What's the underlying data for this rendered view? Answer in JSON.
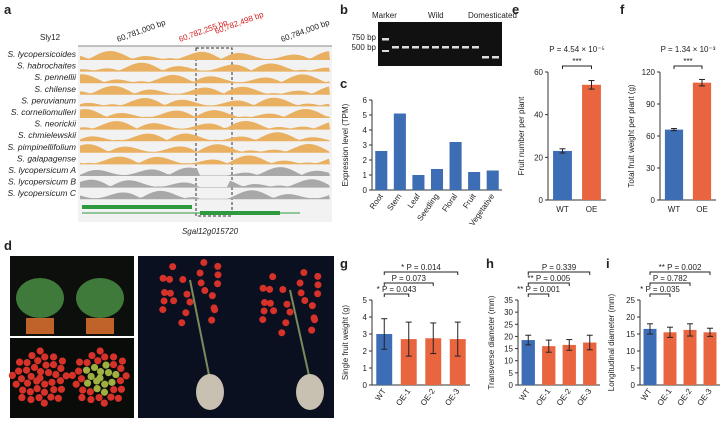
{
  "panel_a": {
    "label": "a",
    "chrom": "Sly12",
    "coords": [
      "60,781,000 bp",
      "60,782,255 bp",
      "60,782,498 bp",
      "60,784,000 bp"
    ],
    "species": [
      "S. lycopersicoides",
      "S. habrochaites",
      "S. pennellii",
      "S. chilense",
      "S. peruvianum",
      "S. corneliomulleri",
      "S. neorickii",
      "S. chmielewskii",
      "S. pimpinellifolium",
      "S. galapagense",
      "S. lycopersicum A",
      "S. lycopersicum B",
      "S. lycopersicum C"
    ],
    "gene": "Sgal12g015720"
  },
  "panel_b": {
    "label": "b",
    "lanes": [
      "Marker",
      "Wild",
      "Domesticated"
    ],
    "sizes": [
      "750 bp",
      "500 bp"
    ]
  },
  "panel_d": {
    "label": "d"
  },
  "chart_data": [
    {
      "type": "bar",
      "label": "c",
      "ylabel": "Expression level (TPM)",
      "categories": [
        "Root",
        "Stem",
        "Leaf",
        "Seedling",
        "Floral",
        "Fruit",
        "Vegetative"
      ],
      "values": [
        2.6,
        5.1,
        1.0,
        1.4,
        3.2,
        1.2,
        1.3
      ],
      "color": "#3d6db5",
      "ylim": [
        0,
        6
      ],
      "yticks": [
        0,
        1,
        2,
        3,
        4,
        5,
        6
      ]
    },
    {
      "type": "bar",
      "label": "e",
      "ylabel": "Fruit number per plant",
      "categories": [
        "WT",
        "OE"
      ],
      "values": [
        23,
        54
      ],
      "errors": [
        1,
        2
      ],
      "colors": [
        "#3d6db5",
        "#e8653f"
      ],
      "ylim": [
        0,
        60
      ],
      "yticks": [
        0,
        20,
        40,
        60
      ],
      "annotations": [
        {
          "text": "P = 4.54 × 10⁻⁵",
          "stars": "***"
        }
      ]
    },
    {
      "type": "bar",
      "label": "f",
      "ylabel": "Total fruit weight per plant (g)",
      "categories": [
        "WT",
        "OE"
      ],
      "values": [
        66,
        110
      ],
      "errors": [
        1,
        3
      ],
      "colors": [
        "#3d6db5",
        "#e8653f"
      ],
      "ylim": [
        0,
        120
      ],
      "yticks": [
        0,
        30,
        60,
        90,
        120
      ],
      "annotations": [
        {
          "text": "P = 1.34 × 10⁻³",
          "stars": "***"
        }
      ]
    },
    {
      "type": "bar",
      "label": "g",
      "ylabel": "Single fruit weight (g)",
      "categories": [
        "WT",
        "OE-1",
        "OE-2",
        "OE-3"
      ],
      "values": [
        3.0,
        2.7,
        2.75,
        2.7
      ],
      "errors": [
        0.9,
        1.0,
        0.9,
        1.0
      ],
      "colors": [
        "#3d6db5",
        "#e8653f",
        "#e8653f",
        "#e8653f"
      ],
      "ylim": [
        0,
        5
      ],
      "yticks": [
        0,
        1,
        2,
        3,
        4,
        5
      ],
      "annotations": [
        {
          "text": "P = 0.043",
          "stars": "*"
        },
        {
          "text": "P = 0.073"
        },
        {
          "text": "P = 0.014",
          "stars": "*"
        }
      ]
    },
    {
      "type": "bar",
      "label": "h",
      "ylabel": "Transverse diameter (mm)",
      "categories": [
        "WT",
        "OE-1",
        "OE-2",
        "OE-3"
      ],
      "values": [
        18.5,
        16,
        16.5,
        17.5
      ],
      "errors": [
        2,
        2.5,
        2.2,
        3
      ],
      "colors": [
        "#3d6db5",
        "#e8653f",
        "#e8653f",
        "#e8653f"
      ],
      "ylim": [
        0,
        35
      ],
      "yticks": [
        0,
        5,
        10,
        15,
        20,
        25,
        30,
        35
      ],
      "annotations": [
        {
          "text": "P = 0.001",
          "stars": "**"
        },
        {
          "text": "P = 0.005",
          "stars": "**"
        },
        {
          "text": "P = 0.339"
        }
      ]
    },
    {
      "type": "bar",
      "label": "i",
      "ylabel": "Longitudinal diameter (mm)",
      "categories": [
        "WT",
        "OE-1",
        "OE-2",
        "OE-3"
      ],
      "values": [
        16.5,
        15.5,
        16.2,
        15.5
      ],
      "errors": [
        1.5,
        1.5,
        1.8,
        1.2
      ],
      "colors": [
        "#3d6db5",
        "#e8653f",
        "#e8653f",
        "#e8653f"
      ],
      "ylim": [
        0,
        25
      ],
      "yticks": [
        0,
        5,
        10,
        15,
        20,
        25
      ],
      "annotations": [
        {
          "text": "P = 0.035",
          "stars": "*"
        },
        {
          "text": "P = 0.782"
        },
        {
          "text": "P = 0.002",
          "stars": "**"
        }
      ]
    }
  ]
}
